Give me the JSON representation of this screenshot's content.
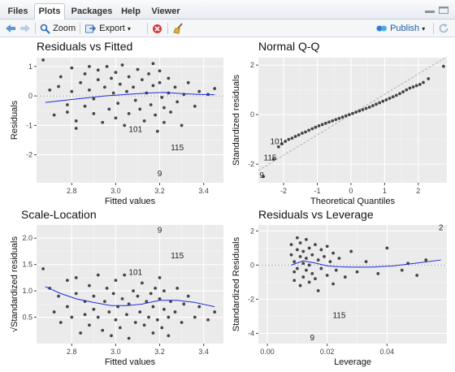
{
  "tabs": [
    {
      "label": "Files",
      "active": false
    },
    {
      "label": "Plots",
      "active": true
    },
    {
      "label": "Packages",
      "active": false
    },
    {
      "label": "Help",
      "active": false
    },
    {
      "label": "Viewer",
      "active": false
    }
  ],
  "toolbar": {
    "zoom_label": "Zoom",
    "export_label": "Export",
    "publish_label": "Publish"
  },
  "colors": {
    "panel_bg": "#ebebeb",
    "grid_major": "#ffffff",
    "points": "#454545",
    "smooth_line": "#1f2bdc",
    "ref_line": "#b0b0b0",
    "accent_blue": "#2d7fd3"
  },
  "chart_data": [
    {
      "type": "scatter",
      "title": "Residuals vs Fitted",
      "xlabel": "Fitted values",
      "ylabel": "Residuals",
      "xlim": [
        2.64,
        3.49
      ],
      "ylim": [
        -2.95,
        1.3
      ],
      "xticks": [
        2.8,
        3.0,
        3.2,
        3.4
      ],
      "xtick_labels": [
        "2.8",
        "3.0",
        "3.2",
        "3.4"
      ],
      "yticks": [
        -2,
        -1,
        0,
        1
      ],
      "ytick_labels": [
        "-2",
        "-1",
        "0",
        "1"
      ],
      "ref_line": {
        "kind": "hline",
        "y": 0
      },
      "points": [
        [
          2.67,
          1.22
        ],
        [
          2.7,
          0.2
        ],
        [
          2.72,
          -0.65
        ],
        [
          2.74,
          0.32
        ],
        [
          2.75,
          0.65
        ],
        [
          2.78,
          -0.3
        ],
        [
          2.78,
          -0.55
        ],
        [
          2.8,
          0.95
        ],
        [
          2.8,
          0.15
        ],
        [
          2.82,
          -1.1
        ],
        [
          2.82,
          -0.85
        ],
        [
          2.84,
          0.45
        ],
        [
          2.86,
          0.75
        ],
        [
          2.86,
          -0.35
        ],
        [
          2.88,
          1.0
        ],
        [
          2.88,
          0.2
        ],
        [
          2.9,
          -0.1
        ],
        [
          2.9,
          -0.6
        ],
        [
          2.92,
          0.55
        ],
        [
          2.92,
          0.88
        ],
        [
          2.94,
          -0.9
        ],
        [
          2.95,
          0.3
        ],
        [
          2.96,
          1.0
        ],
        [
          2.97,
          -0.45
        ],
        [
          2.98,
          0.6
        ],
        [
          2.99,
          0.1
        ],
        [
          3.0,
          -0.75
        ],
        [
          3.0,
          0.8
        ],
        [
          3.01,
          -0.25
        ],
        [
          3.02,
          0.4
        ],
        [
          3.03,
          1.05
        ],
        [
          3.04,
          -1.0
        ],
        [
          3.05,
          0.15
        ],
        [
          3.06,
          0.65
        ],
        [
          3.06,
          -0.6
        ],
        [
          3.08,
          0.3
        ],
        [
          3.09,
          -0.15
        ],
        [
          3.1,
          0.9
        ],
        [
          3.11,
          -0.45
        ],
        [
          3.12,
          0.55
        ],
        [
          3.13,
          -0.85
        ],
        [
          3.14,
          0.1
        ],
        [
          3.15,
          0.75
        ],
        [
          3.16,
          -0.3
        ],
        [
          3.17,
          1.1
        ],
        [
          3.17,
          0.35
        ],
        [
          3.18,
          -0.65
        ],
        [
          3.19,
          -1.2
        ],
        [
          3.2,
          0.85
        ],
        [
          3.2,
          0.45
        ],
        [
          3.21,
          -0.05
        ],
        [
          3.22,
          -0.9
        ],
        [
          3.22,
          -0.4
        ],
        [
          3.24,
          0.1
        ],
        [
          3.24,
          0.6
        ],
        [
          3.25,
          -0.55
        ],
        [
          3.27,
          0.3
        ],
        [
          3.28,
          -0.2
        ],
        [
          3.3,
          -1.0
        ],
        [
          3.31,
          0.05
        ],
        [
          3.33,
          0.45
        ],
        [
          3.36,
          -0.35
        ],
        [
          3.38,
          0.15
        ],
        [
          3.42,
          0.05
        ],
        [
          3.45,
          0.25
        ]
      ],
      "smooth": [
        [
          2.68,
          -0.22
        ],
        [
          2.8,
          -0.12
        ],
        [
          2.95,
          0.0
        ],
        [
          3.05,
          0.05
        ],
        [
          3.15,
          0.1
        ],
        [
          3.22,
          0.12
        ],
        [
          3.3,
          0.08
        ],
        [
          3.38,
          0.05
        ],
        [
          3.45,
          0.04
        ]
      ],
      "labels": [
        {
          "text": "101",
          "x": 3.09,
          "y": -1.23
        },
        {
          "text": "115",
          "x": 3.28,
          "y": -1.85
        },
        {
          "text": "9",
          "x": 3.2,
          "y": -2.73
        }
      ]
    },
    {
      "type": "scatter",
      "title": "Normal Q-Q",
      "xlabel": "Theoretical Quantiles",
      "ylabel": "Standardized residuals",
      "xlim": [
        -2.75,
        2.85
      ],
      "ylim": [
        -2.75,
        2.3
      ],
      "xticks": [
        -2,
        -1,
        0,
        1,
        2
      ],
      "xtick_labels": [
        "-2",
        "-1",
        "0",
        "1",
        "2"
      ],
      "yticks": [
        -2,
        0,
        2
      ],
      "ytick_labels": [
        "-2",
        "0",
        "2"
      ],
      "ref_line": {
        "kind": "abline",
        "slope": 0.82,
        "intercept": 0.0
      },
      "points": [
        [
          -2.6,
          -2.5
        ],
        [
          -2.3,
          -1.8
        ],
        [
          -2.15,
          -1.3
        ],
        [
          -2.05,
          -1.18
        ],
        [
          -1.95,
          -1.08
        ],
        [
          -1.85,
          -1.0
        ],
        [
          -1.75,
          -0.95
        ],
        [
          -1.65,
          -0.88
        ],
        [
          -1.55,
          -0.82
        ],
        [
          -1.45,
          -0.75
        ],
        [
          -1.35,
          -0.7
        ],
        [
          -1.25,
          -0.63
        ],
        [
          -1.15,
          -0.57
        ],
        [
          -1.05,
          -0.51
        ],
        [
          -0.95,
          -0.45
        ],
        [
          -0.85,
          -0.4
        ],
        [
          -0.75,
          -0.35
        ],
        [
          -0.65,
          -0.3
        ],
        [
          -0.55,
          -0.25
        ],
        [
          -0.45,
          -0.2
        ],
        [
          -0.35,
          -0.15
        ],
        [
          -0.25,
          -0.1
        ],
        [
          -0.15,
          -0.05
        ],
        [
          -0.05,
          0.0
        ],
        [
          0.05,
          0.05
        ],
        [
          0.15,
          0.1
        ],
        [
          0.25,
          0.15
        ],
        [
          0.35,
          0.2
        ],
        [
          0.45,
          0.25
        ],
        [
          0.55,
          0.3
        ],
        [
          0.65,
          0.36
        ],
        [
          0.75,
          0.42
        ],
        [
          0.85,
          0.48
        ],
        [
          0.95,
          0.54
        ],
        [
          1.05,
          0.6
        ],
        [
          1.15,
          0.66
        ],
        [
          1.25,
          0.72
        ],
        [
          1.35,
          0.78
        ],
        [
          1.45,
          0.85
        ],
        [
          1.55,
          0.92
        ],
        [
          1.65,
          1.0
        ],
        [
          1.75,
          1.07
        ],
        [
          1.85,
          1.12
        ],
        [
          1.95,
          1.17
        ],
        [
          2.05,
          1.22
        ],
        [
          2.15,
          1.3
        ],
        [
          2.3,
          1.45
        ],
        [
          2.75,
          1.95
        ]
      ],
      "labels": [
        {
          "text": "101",
          "x": -2.2,
          "y": -1.2
        },
        {
          "text": "115",
          "x": -2.4,
          "y": -1.85
        },
        {
          "text": "9",
          "x": -2.65,
          "y": -2.55
        }
      ]
    },
    {
      "type": "scatter",
      "title": "Scale-Location",
      "xlabel": "Fitted values",
      "ylabel": "√Standardized residuals",
      "xlim": [
        2.64,
        3.49
      ],
      "ylim": [
        0.0,
        2.25
      ],
      "xticks": [
        2.8,
        3.0,
        3.2,
        3.4
      ],
      "xtick_labels": [
        "2.8",
        "3.0",
        "3.2",
        "3.4"
      ],
      "yticks": [
        0.5,
        1.0,
        1.5,
        2.0
      ],
      "ytick_labels": [
        "0.5",
        "1.0",
        "1.5",
        "2.0"
      ],
      "points": [
        [
          2.67,
          1.42
        ],
        [
          2.7,
          1.05
        ],
        [
          2.72,
          0.6
        ],
        [
          2.74,
          0.9
        ],
        [
          2.75,
          0.4
        ],
        [
          2.78,
          1.2
        ],
        [
          2.78,
          0.7
        ],
        [
          2.8,
          0.5
        ],
        [
          2.82,
          1.25
        ],
        [
          2.82,
          0.95
        ],
        [
          2.84,
          0.2
        ],
        [
          2.86,
          0.8
        ],
        [
          2.86,
          0.55
        ],
        [
          2.88,
          1.1
        ],
        [
          2.88,
          0.35
        ],
        [
          2.9,
          0.65
        ],
        [
          2.9,
          0.9
        ],
        [
          2.92,
          1.3
        ],
        [
          2.92,
          0.5
        ],
        [
          2.94,
          0.25
        ],
        [
          2.95,
          0.8
        ],
        [
          2.96,
          1.05
        ],
        [
          2.97,
          0.6
        ],
        [
          2.98,
          0.15
        ],
        [
          2.99,
          0.95
        ],
        [
          3.0,
          0.45
        ],
        [
          3.0,
          1.2
        ],
        [
          3.01,
          0.7
        ],
        [
          3.02,
          0.3
        ],
        [
          3.03,
          0.85
        ],
        [
          3.04,
          1.3
        ],
        [
          3.05,
          0.55
        ],
        [
          3.06,
          0.1
        ],
        [
          3.06,
          0.75
        ],
        [
          3.08,
          1.0
        ],
        [
          3.09,
          0.4
        ],
        [
          3.1,
          0.9
        ],
        [
          3.11,
          0.6
        ],
        [
          3.12,
          1.15
        ],
        [
          3.13,
          0.35
        ],
        [
          3.14,
          0.8
        ],
        [
          3.15,
          0.5
        ],
        [
          3.16,
          0.95
        ],
        [
          3.17,
          0.2
        ],
        [
          3.17,
          0.7
        ],
        [
          3.18,
          1.05
        ],
        [
          3.19,
          0.45
        ],
        [
          3.2,
          0.85
        ],
        [
          3.2,
          1.25
        ],
        [
          3.21,
          0.3
        ],
        [
          3.22,
          0.65
        ],
        [
          3.22,
          1.0
        ],
        [
          3.24,
          0.5
        ],
        [
          3.24,
          0.15
        ],
        [
          3.25,
          0.8
        ],
        [
          3.27,
          0.6
        ],
        [
          3.28,
          1.05
        ],
        [
          3.3,
          0.4
        ],
        [
          3.31,
          0.75
        ],
        [
          3.33,
          0.9
        ],
        [
          3.36,
          0.5
        ],
        [
          3.38,
          0.7
        ],
        [
          3.42,
          0.45
        ],
        [
          3.45,
          0.6
        ]
      ],
      "smooth": [
        [
          2.68,
          1.08
        ],
        [
          2.75,
          0.95
        ],
        [
          2.82,
          0.85
        ],
        [
          2.9,
          0.78
        ],
        [
          2.98,
          0.72
        ],
        [
          3.05,
          0.72
        ],
        [
          3.12,
          0.75
        ],
        [
          3.2,
          0.82
        ],
        [
          3.28,
          0.82
        ],
        [
          3.36,
          0.78
        ],
        [
          3.45,
          0.7
        ]
      ],
      "labels": [
        {
          "text": "101",
          "x": 3.09,
          "y": 1.3
        },
        {
          "text": "115",
          "x": 3.28,
          "y": 1.62
        },
        {
          "text": "9",
          "x": 3.2,
          "y": 2.1
        }
      ]
    },
    {
      "type": "scatter",
      "title": "Residuals vs Leverage",
      "xlabel": "Leverage",
      "ylabel": "Standardized Residuals",
      "xlim": [
        -0.003,
        0.06
      ],
      "ylim": [
        -4.6,
        2.35
      ],
      "xticks": [
        0.0,
        0.02,
        0.04
      ],
      "xtick_labels": [
        "0.00",
        "0.02",
        "0.04"
      ],
      "yticks": [
        -4,
        -2,
        0,
        2
      ],
      "ytick_labels": [
        "-4",
        "-2",
        "0",
        "2"
      ],
      "ref_line": {
        "kind": "hline",
        "y": 0
      },
      "points": [
        [
          0.008,
          1.2
        ],
        [
          0.008,
          0.6
        ],
        [
          0.009,
          0.2
        ],
        [
          0.009,
          -0.4
        ],
        [
          0.009,
          -0.9
        ],
        [
          0.01,
          1.6
        ],
        [
          0.01,
          0.9
        ],
        [
          0.01,
          -0.2
        ],
        [
          0.011,
          0.5
        ],
        [
          0.011,
          -1.2
        ],
        [
          0.011,
          1.3
        ],
        [
          0.012,
          0.1
        ],
        [
          0.012,
          -0.7
        ],
        [
          0.012,
          0.8
        ],
        [
          0.013,
          1.5
        ],
        [
          0.013,
          -0.3
        ],
        [
          0.013,
          0.4
        ],
        [
          0.014,
          -1.0
        ],
        [
          0.014,
          1.0
        ],
        [
          0.014,
          0.0
        ],
        [
          0.015,
          -0.5
        ],
        [
          0.015,
          0.6
        ],
        [
          0.016,
          1.2
        ],
        [
          0.016,
          -0.8
        ],
        [
          0.017,
          0.3
        ],
        [
          0.017,
          -1.5
        ],
        [
          0.018,
          0.9
        ],
        [
          0.018,
          -0.2
        ],
        [
          0.019,
          0.5
        ],
        [
          0.02,
          -0.6
        ],
        [
          0.02,
          1.1
        ],
        [
          0.021,
          0.2
        ],
        [
          0.022,
          -1.1
        ],
        [
          0.022,
          0.7
        ],
        [
          0.023,
          -0.3
        ],
        [
          0.024,
          0.4
        ],
        [
          0.026,
          -0.7
        ],
        [
          0.028,
          0.8
        ],
        [
          0.03,
          -0.4
        ],
        [
          0.033,
          0.2
        ],
        [
          0.037,
          -0.5
        ],
        [
          0.04,
          1.0
        ],
        [
          0.045,
          -0.3
        ],
        [
          0.047,
          0.1
        ],
        [
          0.05,
          -0.6
        ],
        [
          0.053,
          0.3
        ]
      ],
      "smooth": [
        [
          0.008,
          0.0
        ],
        [
          0.012,
          0.25
        ],
        [
          0.016,
          0.12
        ],
        [
          0.02,
          -0.05
        ],
        [
          0.024,
          -0.1
        ],
        [
          0.028,
          -0.12
        ],
        [
          0.035,
          -0.12
        ],
        [
          0.042,
          -0.05
        ],
        [
          0.05,
          0.12
        ],
        [
          0.058,
          0.3
        ]
      ],
      "labels": [
        {
          "text": "2",
          "x": 0.058,
          "y": 2.05
        },
        {
          "text": "115",
          "x": 0.024,
          "y": -3.1
        },
        {
          "text": "9",
          "x": 0.015,
          "y": -4.4
        }
      ]
    }
  ]
}
